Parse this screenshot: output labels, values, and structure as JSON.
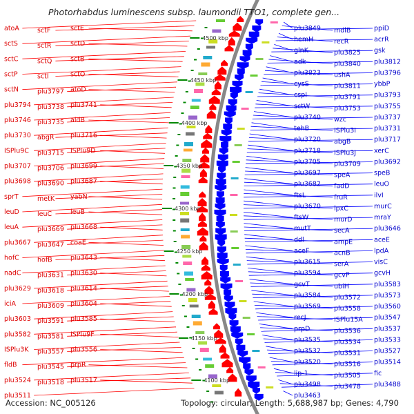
{
  "title": "Photorhabdus luminescens subsp. laumondii TTO1, complete gen...",
  "footer": {
    "accession": "Accession: NC_005126",
    "topology": "Topology: circular; Length: 5,688,987 bp; Genes: 4,790"
  },
  "colors": {
    "forward_genes": "#ff0000",
    "reverse_genes": "#0000ff",
    "backbone": "#888888",
    "tick": "#008800"
  },
  "ticks": [
    {
      "label": "4500 kbp"
    },
    {
      "label": "4450 kbp"
    },
    {
      "label": "4400 kbp"
    },
    {
      "label": "4350 kbp"
    },
    {
      "label": "4300 kbp"
    },
    {
      "label": "4250 kbp"
    },
    {
      "label": "4200 kbp"
    },
    {
      "label": "4150 kbp"
    },
    {
      "label": "4100 kbp"
    }
  ],
  "left_labels": [
    "atoA",
    "sctF",
    "sctE",
    "sctS",
    "sctR",
    "sctD",
    "sctC",
    "sctQ",
    "sctB",
    "sctP",
    "sctI",
    "sctO",
    "sctN",
    "plu3797",
    "atoD",
    "plu3794",
    "plu3738",
    "plu3741",
    "plu3746",
    "plu3735",
    "aldB",
    "plu3730",
    "abgR",
    "plu3716",
    "ISPlu9C",
    "plu3715",
    "ISPlu9D",
    "plu3707",
    "plu3706",
    "plu3699",
    "plu3698",
    "plu3690",
    "plu3687",
    "sprT",
    "metK",
    "yabN",
    "leuD",
    "leuC",
    "leuB",
    "leuA",
    "plu3669",
    "plu3668",
    "plu3667",
    "plu3647",
    "coaE",
    "hofC",
    "hofB",
    "plu3643",
    "nadC",
    "plu3631",
    "plu3630",
    "plu3629",
    "plu3618",
    "plu3614",
    "iciA",
    "plu3609",
    "plu3604",
    "plu3603",
    "plu3591",
    "plu3585",
    "plu3582",
    "plu3581",
    "ISPlu9F",
    "ISPlu3K",
    "plu3557",
    "plu3556",
    "fldB",
    "plu3545",
    "prpR",
    "plu3524",
    "plu3518",
    "plu3517",
    "plu3511"
  ],
  "right_labels": [
    "plu3849",
    "mdlB",
    "ppiD",
    "hemH",
    "recR",
    "acrR",
    "glnK",
    "plu3825",
    "gsk",
    "adk",
    "plu3840",
    "plu3812",
    "plu3823",
    "ushA",
    "plu3796",
    "cysS",
    "plu3811",
    "ybbP",
    "cspI",
    "plu3791",
    "plu3793",
    "sctW",
    "plu3753",
    "plu3755",
    "plu3740",
    "wzc",
    "plu3737",
    "tehB",
    "ISPlu3I",
    "plu3731",
    "plu3720",
    "abgB",
    "plu3717",
    "plu3718",
    "ISPlu3J",
    "xerC",
    "plu3705",
    "plu3709",
    "plu3692",
    "plu3697",
    "speA",
    "speB",
    "plu3682",
    "fadD",
    "leuO",
    "ftsL",
    "fruR",
    "ilvI",
    "plu3670",
    "lpxC",
    "murC",
    "ftsW",
    "murD",
    "mraY",
    "mutT",
    "secA",
    "plu3646",
    "ddl",
    "ampE",
    "aceE",
    "aceF",
    "acnB",
    "lpdA",
    "plu3615",
    "serA",
    "visC",
    "plu3594",
    "gcvP",
    "gcvH",
    "gcvT",
    "ubiH",
    "plu3583",
    "plu3584",
    "plu3572",
    "plu3573",
    "plu3569",
    "plu3558",
    "plu3560",
    "recJ",
    "ISPlu15A",
    "plu3547",
    "prpD",
    "plu3536",
    "plu3537",
    "plu3535",
    "plu3534",
    "plu3533",
    "plu3532",
    "plu3531",
    "plu3527",
    "plu3520",
    "plu3516",
    "plu3514",
    "lip-1",
    "plu3505",
    "fic",
    "plu3498",
    "plu3478",
    "plu3488",
    "plu3463"
  ]
}
